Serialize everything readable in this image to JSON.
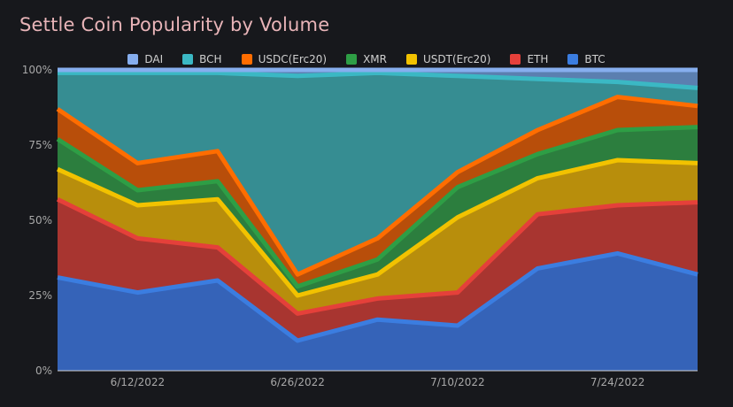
{
  "title": "Settle Coin Popularity by Volume",
  "chart_data": {
    "type": "area",
    "stacked": "percent",
    "title": "Settle Coin Popularity by Volume",
    "xlabel": "",
    "ylabel": "",
    "ylim": [
      0,
      100
    ],
    "y_ticks": [
      "0%",
      "25%",
      "50%",
      "75%",
      "100%"
    ],
    "x_tick_labels": [
      "6/12/2022",
      "6/26/2022",
      "7/10/2022",
      "7/24/2022"
    ],
    "x_points": 9,
    "x_tick_indices": [
      1,
      3,
      5,
      7
    ],
    "legend_position": "top-center",
    "grid": true,
    "series": [
      {
        "name": "BTC",
        "color": "#3b7de0",
        "fill": "#3563b8",
        "values": [
          31,
          26,
          30,
          10,
          17,
          15,
          34,
          39,
          32
        ]
      },
      {
        "name": "ETH",
        "color": "#e5403a",
        "fill": "#a83530",
        "values": [
          26,
          18,
          11,
          9,
          7,
          11,
          18,
          16,
          24
        ]
      },
      {
        "name": "USDT(Erc20)",
        "color": "#f2c200",
        "fill": "#b88e0c",
        "values": [
          10,
          11,
          16,
          6,
          8,
          25,
          12,
          15,
          13
        ]
      },
      {
        "name": "XMR",
        "color": "#2e9e45",
        "fill": "#2c7e3e",
        "values": [
          10,
          5,
          6,
          3,
          5,
          10,
          8,
          10,
          12
        ]
      },
      {
        "name": "USDC(Erc20)",
        "color": "#ff6d00",
        "fill": "#b84e0a",
        "values": [
          10,
          9,
          10,
          4,
          7,
          5,
          8,
          11,
          7
        ]
      },
      {
        "name": "BCH",
        "color": "#3bb8c4",
        "fill": "#368d92",
        "values": [
          12,
          30,
          26,
          66,
          55,
          32,
          17,
          5,
          6
        ]
      },
      {
        "name": "DAI",
        "color": "#86aeee",
        "fill": "#5b7fb0",
        "values": [
          1,
          1,
          1,
          2,
          1,
          2,
          3,
          4,
          6
        ]
      }
    ]
  }
}
